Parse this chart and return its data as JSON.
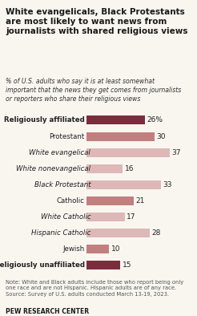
{
  "title": "White evangelicals, Black Protestants\nare most likely to want news from\njournalists with shared religious views",
  "subtitle": "% of U.S. adults who say it is at least somewhat\nimportant that the news they get comes from journalists\nor reporters who share their religious views",
  "subtitle_bold_part": "share their religious views",
  "categories": [
    "Religiously affiliated",
    "Protestant",
    "White evangelical",
    "White nonevangelical",
    "Black Protestant",
    "Catholic",
    "White Catholic",
    "Hispanic Catholic",
    "Jewish",
    "Religiously unaffiliated"
  ],
  "values": [
    26,
    30,
    37,
    16,
    33,
    21,
    17,
    28,
    10,
    15
  ],
  "bar_colors": [
    "#7b2d3e",
    "#c17f7f",
    "#deb8b8",
    "#deb8b8",
    "#deb8b8",
    "#c17f7f",
    "#deb8b8",
    "#deb8b8",
    "#c17f7f",
    "#7b2d3e"
  ],
  "bold_labels": [
    true,
    false,
    false,
    false,
    false,
    false,
    false,
    false,
    false,
    true
  ],
  "italic_labels": [
    false,
    false,
    true,
    true,
    true,
    false,
    true,
    true,
    false,
    false
  ],
  "indented": [
    false,
    false,
    true,
    true,
    true,
    false,
    true,
    true,
    false,
    false
  ],
  "value_pct": [
    true,
    false,
    false,
    false,
    false,
    false,
    false,
    false,
    false,
    false
  ],
  "note": "Note: White and Black adults include those who report being only\none race and are not Hispanic. Hispanic adults are of any race.\nSource: Survey of U.S. adults conducted March 13-19, 2023.",
  "source": "PEW RESEARCH CENTER",
  "bg_color": "#f9f6f0",
  "xlim": [
    0,
    42
  ],
  "bar_height": 0.55
}
